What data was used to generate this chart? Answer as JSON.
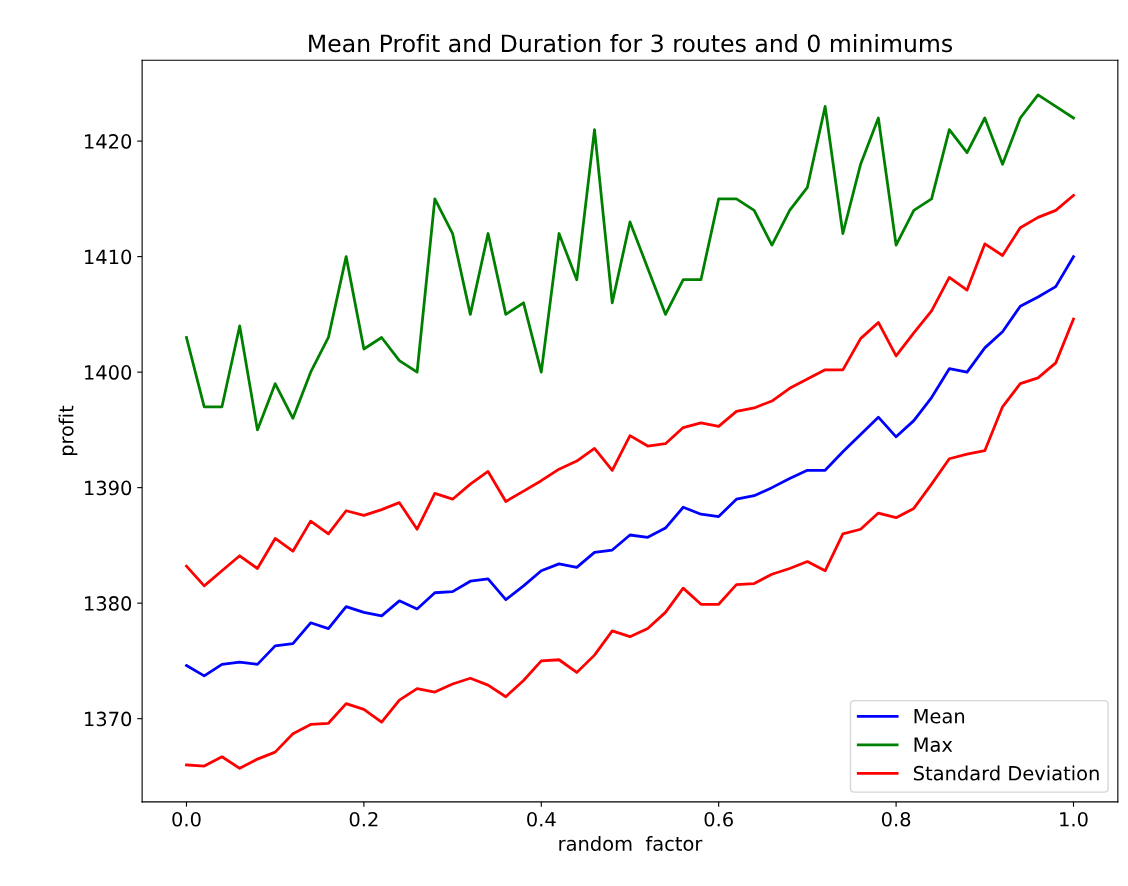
{
  "chart_data": {
    "type": "line",
    "title": "Mean Profit and Duration for 3 routes and 0 minimums",
    "xlabel": "random  factor",
    "ylabel": "profit",
    "x": [
      0,
      0.02,
      0.04,
      0.06,
      0.08,
      0.1,
      0.12,
      0.14,
      0.16,
      0.18,
      0.2,
      0.22,
      0.24,
      0.26,
      0.28,
      0.3,
      0.32,
      0.34,
      0.36,
      0.38,
      0.4,
      0.42,
      0.44,
      0.46,
      0.48,
      0.5,
      0.52,
      0.54,
      0.56,
      0.58,
      0.6,
      0.62,
      0.64,
      0.66,
      0.68,
      0.7,
      0.72,
      0.74,
      0.76,
      0.78,
      0.8,
      0.82,
      0.84,
      0.86,
      0.88,
      0.9,
      0.92,
      0.94,
      0.96,
      0.98,
      1.0
    ],
    "series": [
      {
        "name": "Mean",
        "color": "#0000ff",
        "values": [
          1374.6,
          1373.7,
          1374.7,
          1374.9,
          1374.7,
          1376.3,
          1376.5,
          1378.3,
          1377.8,
          1379.7,
          1379.2,
          1378.9,
          1380.2,
          1379.5,
          1380.9,
          1381.0,
          1381.9,
          1382.1,
          1380.3,
          1381.5,
          1382.8,
          1383.4,
          1383.1,
          1384.4,
          1384.6,
          1385.9,
          1385.7,
          1386.5,
          1388.3,
          1387.7,
          1387.5,
          1389.0,
          1389.3,
          1390.0,
          1390.8,
          1391.5,
          1391.5,
          1393.1,
          1394.6,
          1396.1,
          1394.4,
          1395.8,
          1397.8,
          1400.3,
          1400.0,
          1402.1,
          1403.5,
          1405.7,
          1406.5,
          1407.4,
          1410.0
        ]
      },
      {
        "name": "Max",
        "color": "#008000",
        "values": [
          1403,
          1397,
          1397,
          1404,
          1395,
          1399,
          1396,
          1400,
          1403,
          1410,
          1402,
          1403,
          1401,
          1400,
          1415,
          1412,
          1405,
          1412,
          1405,
          1406,
          1400,
          1412,
          1408,
          1421,
          1406,
          1413,
          1409,
          1405,
          1408,
          1408,
          1415,
          1415,
          1414,
          1411,
          1414,
          1416,
          1423,
          1412,
          1418,
          1422,
          1411,
          1414,
          1415,
          1421,
          1419,
          1422,
          1418,
          1422,
          1424,
          1423,
          1422
        ]
      },
      {
        "name": "Standard Deviation",
        "color": "#ff0000",
        "values": [
          1383.2,
          1381.5,
          1382.8,
          1384.1,
          1383.0,
          1385.6,
          1384.5,
          1387.1,
          1386.0,
          1388.0,
          1387.6,
          1388.1,
          1388.7,
          1386.4,
          1389.5,
          1389.0,
          1390.3,
          1391.4,
          1388.8,
          1389.7,
          1390.6,
          1391.6,
          1392.3,
          1393.4,
          1391.5,
          1394.5,
          1393.6,
          1393.8,
          1395.2,
          1395.6,
          1395.3,
          1396.6,
          1396.9,
          1397.5,
          1398.6,
          1399.4,
          1400.2,
          1400.2,
          1402.9,
          1404.3,
          1401.4,
          1403.4,
          1405.3,
          1408.2,
          1407.1,
          1411.1,
          1410.1,
          1412.5,
          1413.4,
          1414.0,
          1415.3
        ]
      },
      {
        "color": "#ff0000",
        "values": [
          1366.0,
          1365.9,
          1366.7,
          1365.7,
          1366.5,
          1367.1,
          1368.7,
          1369.5,
          1369.6,
          1371.3,
          1370.8,
          1369.7,
          1371.6,
          1372.6,
          1372.3,
          1373.0,
          1373.5,
          1372.9,
          1371.9,
          1373.3,
          1375.0,
          1375.1,
          1374.0,
          1375.5,
          1377.6,
          1377.1,
          1377.8,
          1379.2,
          1381.3,
          1379.9,
          1379.9,
          1381.6,
          1381.7,
          1382.5,
          1383.0,
          1383.6,
          1382.8,
          1386.0,
          1386.4,
          1387.8,
          1387.4,
          1388.2,
          1390.3,
          1392.5,
          1392.9,
          1393.2,
          1397.0,
          1399.0,
          1399.5,
          1400.8,
          1404.6
        ]
      }
    ],
    "xlim": [
      -0.05,
      1.05
    ],
    "ylim": [
      1362.8,
      1427.0
    ],
    "xticks": [
      {
        "value": 0,
        "label": "0.0"
      },
      {
        "value": 0.2,
        "label": "0.2"
      },
      {
        "value": 0.4,
        "label": "0.4"
      },
      {
        "value": 0.6,
        "label": "0.6"
      },
      {
        "value": 0.8,
        "label": "0.8"
      },
      {
        "value": 1.0,
        "label": "1.0"
      }
    ],
    "yticks": [
      1370,
      1380,
      1390,
      1400,
      1410,
      1420
    ],
    "legend": "lower right",
    "grid": false
  }
}
